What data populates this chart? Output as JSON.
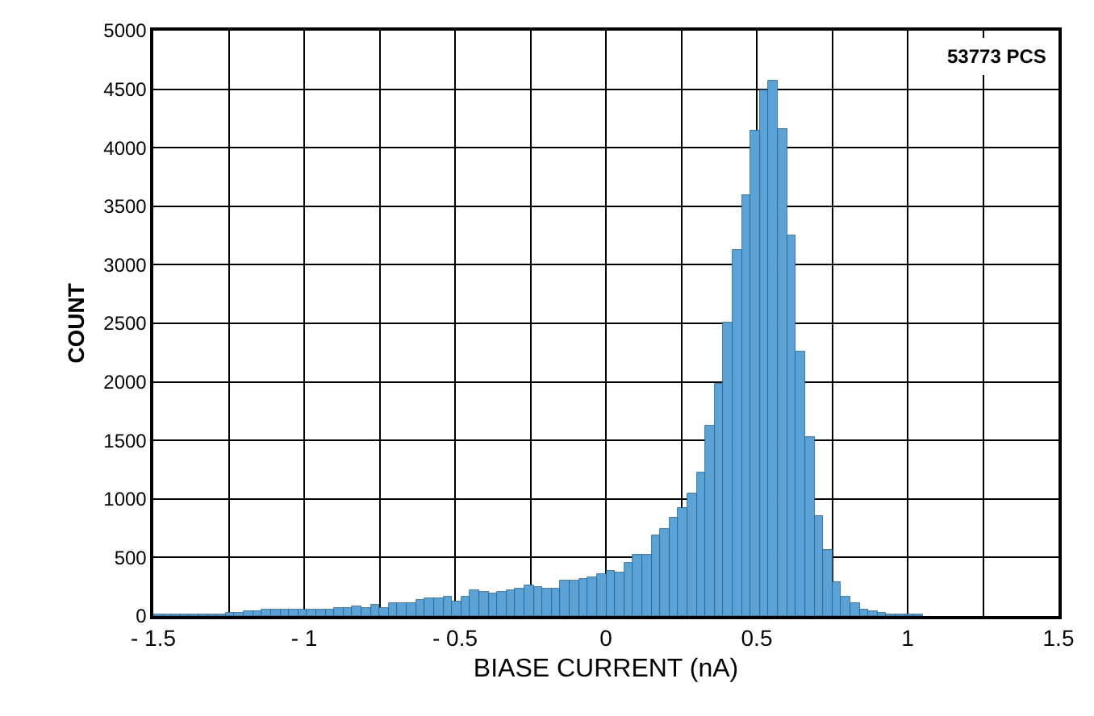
{
  "chart_data": {
    "type": "histogram",
    "xlabel": "BIASE CURRENT (nA)",
    "ylabel": "COUNT",
    "annotations": [
      "53773 PCS"
    ],
    "color": "#5ba3d6",
    "bins": [
      -1.5,
      -1.47,
      -1.44,
      -1.41,
      -1.38,
      -1.35,
      -1.32,
      -1.29,
      -1.26,
      -1.23,
      -1.2,
      -1.17,
      -1.14,
      -1.11,
      -1.08,
      -1.05,
      -1.02,
      -0.99,
      -0.96,
      -0.93,
      -0.9,
      -0.87,
      -0.84,
      -0.81,
      -0.78,
      -0.75,
      -0.72,
      -0.69,
      -0.66,
      -0.63,
      -0.6,
      -0.57,
      -0.54,
      -0.51,
      -0.48,
      -0.45,
      -0.42,
      -0.39,
      -0.36,
      -0.33,
      -0.3,
      -0.27,
      -0.24,
      -0.21,
      -0.18,
      -0.15,
      -0.12,
      -0.09,
      -0.06,
      -0.03,
      0,
      0.03,
      0.06,
      0.09,
      0.12,
      0.15,
      0.18,
      0.21,
      0.24,
      0.27,
      0.3,
      0.33,
      0.36,
      0.39,
      0.42,
      0.45,
      0.48,
      0.51,
      0.54,
      0.57,
      0.6,
      0.63,
      0.66,
      0.69,
      0.72,
      0.75,
      0.78,
      0.81,
      0.84,
      0.87,
      0.9,
      0.93,
      0.96,
      0.99,
      1.02,
      1.05
    ],
    "values": [
      10,
      10,
      10,
      10,
      20,
      10,
      10,
      20,
      30,
      30,
      40,
      40,
      50,
      50,
      50,
      60,
      60,
      60,
      60,
      60,
      70,
      70,
      80,
      70,
      90,
      70,
      110,
      110,
      110,
      140,
      150,
      150,
      160,
      130,
      170,
      220,
      200,
      190,
      210,
      220,
      230,
      260,
      250,
      240,
      240,
      300,
      300,
      320,
      330,
      360,
      390,
      370,
      450,
      520,
      530,
      690,
      740,
      840,
      920,
      1050,
      1230,
      1630,
      1990,
      2510,
      3120,
      3600,
      4150,
      4490,
      4570,
      4160,
      3250,
      2260,
      1530,
      850,
      560,
      290,
      170,
      110,
      60,
      40,
      30,
      20,
      10,
      10,
      10
    ],
    "xlim": [
      -1.5,
      1.5
    ],
    "xticks": [
      {
        "value": -1.5,
        "label": "- 1.5"
      },
      {
        "value": -1.25,
        "label": null
      },
      {
        "value": -1,
        "label": "- 1"
      },
      {
        "value": -0.75,
        "label": null
      },
      {
        "value": -0.5,
        "label": "- 0.5"
      },
      {
        "value": -0.25,
        "label": null
      },
      0,
      {
        "value": 0.25,
        "label": null
      },
      0.5,
      {
        "value": 0.75,
        "label": null
      },
      1,
      {
        "value": 1.25,
        "label": null
      },
      1.5
    ],
    "ylim": [
      0,
      5000
    ],
    "yticks": [
      0,
      500,
      1000,
      1500,
      2000,
      2500,
      3000,
      3500,
      4000,
      4500,
      5000
    ],
    "grid": true
  }
}
